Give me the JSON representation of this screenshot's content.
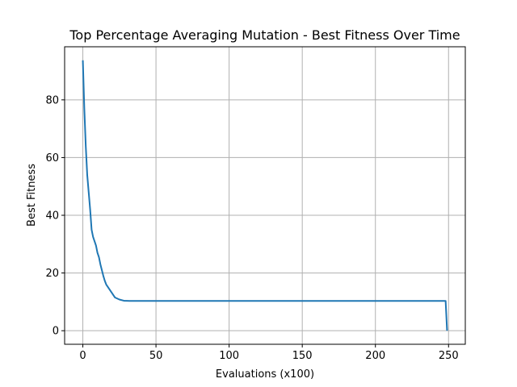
{
  "chart_data": {
    "type": "line",
    "title": "Top Percentage Averaging Mutation - Best Fitness Over Time",
    "xlabel": "Evaluations (x100)",
    "ylabel": "Best Fitness",
    "xlim": [
      -12.45,
      261.45
    ],
    "ylim": [
      -4.7,
      98.4
    ],
    "xticks": [
      0,
      50,
      100,
      150,
      200,
      250
    ],
    "yticks": [
      0,
      20,
      40,
      60,
      80
    ],
    "grid": true,
    "legend": "none",
    "line_color": "#1f77b4",
    "series": [
      {
        "x": [
          0,
          1,
          2,
          3,
          4,
          5,
          6,
          7,
          8,
          9,
          10,
          11,
          12,
          13,
          14,
          15,
          16,
          18,
          20,
          22,
          25,
          28,
          32,
          40,
          60,
          100,
          150,
          200,
          247,
          248,
          249
        ],
        "values": [
          93.7,
          77,
          64,
          54,
          48,
          42,
          35,
          32.5,
          31,
          29.5,
          27,
          25.5,
          23,
          21,
          19,
          17.3,
          16,
          14.5,
          13,
          11.5,
          10.8,
          10.4,
          10.3,
          10.3,
          10.3,
          10.3,
          10.3,
          10.3,
          10.3,
          10.3,
          0
        ]
      }
    ]
  }
}
